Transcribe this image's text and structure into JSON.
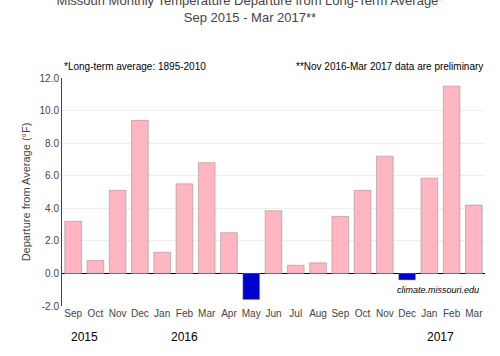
{
  "chart_data": {
    "type": "bar",
    "title": "Missouri Monthly Temperature Departure from Long-Term Average*",
    "subtitle": "Sep 2015 - Mar 2017**",
    "y_label": "Departure from Average (°F)",
    "categories": [
      "Sep",
      "Oct",
      "Nov",
      "Dec",
      "Jan",
      "Feb",
      "Mar",
      "Apr",
      "May",
      "Jun",
      "Jul",
      "Aug",
      "Sep",
      "Oct",
      "Nov",
      "Dec",
      "Jan",
      "Feb",
      "Mar"
    ],
    "values": [
      3.2,
      0.8,
      5.1,
      9.4,
      1.3,
      5.5,
      6.8,
      2.5,
      -1.6,
      3.85,
      0.5,
      0.65,
      3.5,
      5.1,
      7.2,
      -0.4,
      5.85,
      11.5,
      4.2
    ],
    "colors": [
      "#FFB6C1",
      "#FFB6C1",
      "#FFB6C1",
      "#FFB6C1",
      "#FFB6C1",
      "#FFB6C1",
      "#FFB6C1",
      "#FFB6C1",
      "#0000CD",
      "#FFB6C1",
      "#FFB6C1",
      "#FFB6C1",
      "#FFB6C1",
      "#FFB6C1",
      "#FFB6C1",
      "#0000CD",
      "#FFB6C1",
      "#FFB6C1",
      "#FFB6C1"
    ],
    "ylim": [
      -2.0,
      12.0
    ],
    "yticks": [
      {
        "value": -2.0,
        "label": "-2.0"
      },
      {
        "value": 0.0,
        "label": "0.0"
      },
      {
        "value": 2.0,
        "label": "2.0"
      },
      {
        "value": 4.0,
        "label": "4.0"
      },
      {
        "value": 6.0,
        "label": "6.0"
      },
      {
        "value": 8.0,
        "label": "8.0"
      },
      {
        "value": 10.0,
        "label": "10.0"
      },
      {
        "value": 12.0,
        "label": "12.0"
      }
    ],
    "grid": true,
    "annotations": [
      "*Long-term average: 1895-2010",
      "**Nov 2016-Mar 2017 data are preliminary",
      "climate.missouri.edu",
      {
        "text": "2015",
        "x": 0.5
      },
      {
        "text": "2016",
        "x": 5.0
      },
      {
        "text": "2017",
        "x": 16.5
      }
    ]
  }
}
